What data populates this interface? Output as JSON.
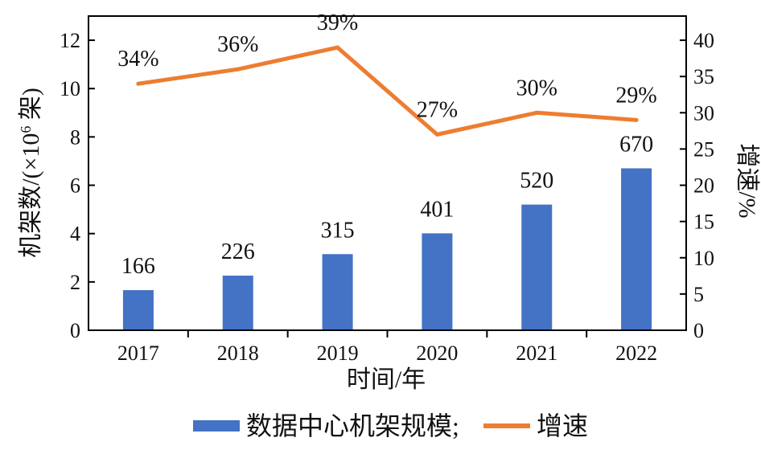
{
  "chart_data": {
    "type": "bar",
    "categories": [
      "2017",
      "2018",
      "2019",
      "2020",
      "2021",
      "2022"
    ],
    "series": [
      {
        "name": "数据中心机架规模;",
        "kind": "bar",
        "axis": "left",
        "values": [
          1.66,
          2.26,
          3.15,
          4.01,
          5.2,
          6.7
        ],
        "labels": [
          "166",
          "226",
          "315",
          "401",
          "520",
          "670"
        ],
        "color": "#4472c4"
      },
      {
        "name": "增速",
        "kind": "line",
        "axis": "right",
        "values": [
          34,
          36,
          39,
          27,
          30,
          29
        ],
        "labels": [
          "34%",
          "36%",
          "39%",
          "27%",
          "30%",
          "29%"
        ],
        "color": "#ed7d31"
      }
    ],
    "xlabel": "时间/年",
    "ylabel": "机架数/(×10⁶ 架)",
    "ylabel_base": "机架数/(×10",
    "ylabel_exp": "6",
    "ylabel_tail": " 架)",
    "y2label": "增速/%",
    "ylim": [
      0,
      13
    ],
    "yticks": [
      0,
      2,
      4,
      6,
      8,
      10,
      12
    ],
    "y2lim": [
      0,
      43.333
    ],
    "y2ticks": [
      0,
      5,
      10,
      15,
      20,
      25,
      30,
      35,
      40
    ],
    "grid": false,
    "legend_position": "bottom"
  }
}
